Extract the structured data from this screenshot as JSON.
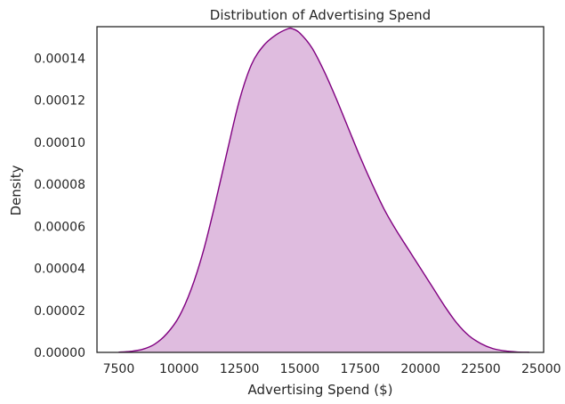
{
  "chart_data": {
    "type": "area",
    "title": "Distribution of Advertising Spend",
    "xlabel": "Advertising Spend ($)",
    "ylabel": "Density",
    "xlim": [
      6600,
      25100
    ],
    "ylim": [
      0,
      0.000155
    ],
    "x_ticks": [
      7500,
      10000,
      12500,
      15000,
      17500,
      20000,
      22500,
      25000
    ],
    "x_tick_labels": [
      "7500",
      "10000",
      "12500",
      "15000",
      "17500",
      "20000",
      "22500",
      "25000"
    ],
    "y_ticks": [
      0,
      2e-05,
      4e-05,
      6e-05,
      8e-05,
      0.0001,
      0.00012,
      0.00014
    ],
    "y_tick_labels": [
      "0.00000",
      "0.00002",
      "0.00004",
      "0.00006",
      "0.00008",
      "0.00010",
      "0.00012",
      "0.00014"
    ],
    "grid": false,
    "legend": "none",
    "series": [
      {
        "x": [
          7500,
          8000,
          8500,
          9000,
          9500,
          10000,
          10500,
          11000,
          11500,
          12000,
          12500,
          13000,
          13500,
          14000,
          14500,
          14700,
          15000,
          15500,
          16000,
          16500,
          17000,
          17500,
          18000,
          18500,
          19000,
          19500,
          20000,
          20500,
          21000,
          21500,
          22000,
          22500,
          23000,
          23500,
          24000,
          24500
        ],
        "y": [
          1e-07,
          5e-07,
          1.5e-06,
          4e-06,
          9e-06,
          1.7e-05,
          3e-05,
          4.8e-05,
          7.1e-05,
          9.6e-05,
          0.00012,
          0.000137,
          0.000146,
          0.000151,
          0.000154,
          0.000154,
          0.000152,
          0.000145,
          0.000134,
          0.000121,
          0.000107,
          9.3e-05,
          8e-05,
          6.8e-05,
          5.8e-05,
          4.9e-05,
          4e-05,
          3.1e-05,
          2.2e-05,
          1.4e-05,
          8e-06,
          4.2e-06,
          1.8e-06,
          7e-07,
          2e-07,
          5e-08
        ],
        "line_color": "#800080",
        "fill_color": "#dfbcdf"
      }
    ]
  }
}
